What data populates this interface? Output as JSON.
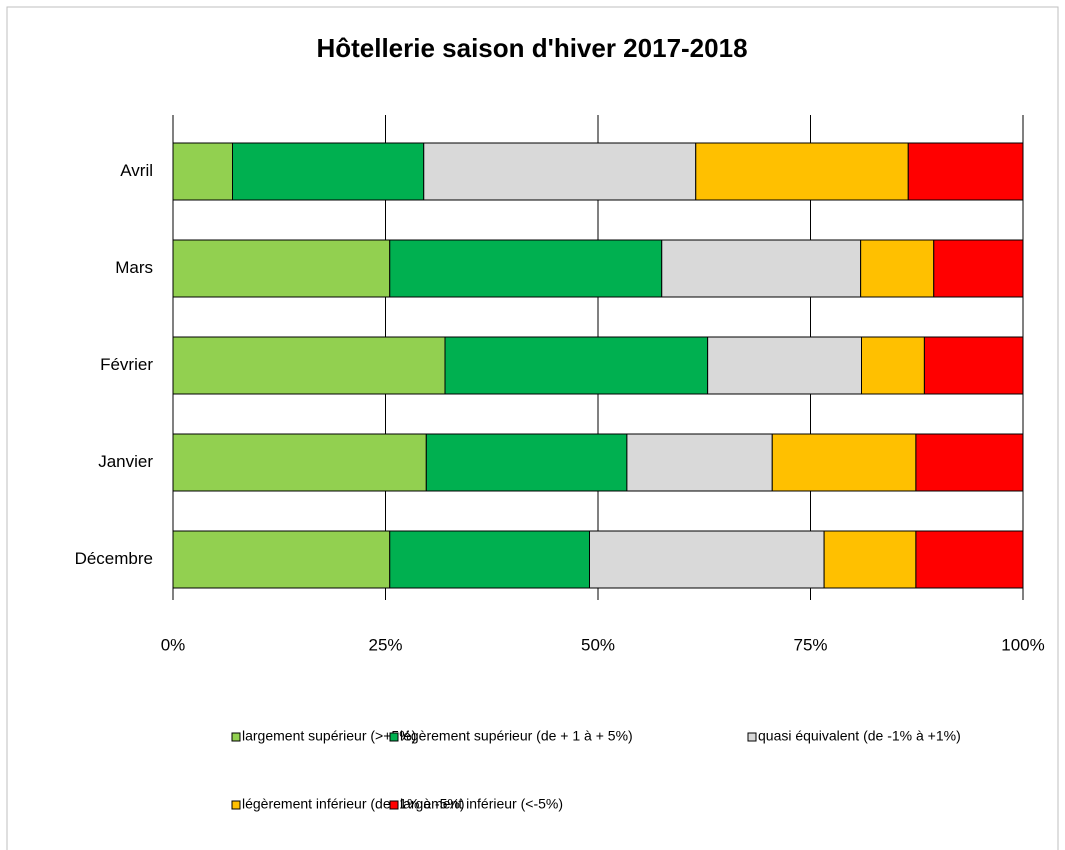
{
  "chart_data": {
    "type": "stacked-barh",
    "title": "Hôtellerie saison d'hiver 2017-2018",
    "categories": [
      "Avril",
      "Mars",
      "Février",
      "Janvier",
      "Décembre"
    ],
    "series": [
      {
        "name": "largement supérieur (>+5%)",
        "color": "#92d050",
        "values": [
          7,
          25.5,
          32,
          29.8,
          25.5
        ]
      },
      {
        "name": "légèrement supérieur (de + 1 à + 5%)",
        "color": "#00b050",
        "values": [
          22.5,
          32,
          30.9,
          23.6,
          23.5
        ]
      },
      {
        "name": "quasi équivalent (de  -1% à +1%)",
        "color": "#d9d9d9",
        "values": [
          32,
          23.4,
          18.1,
          17.1,
          27.6
        ]
      },
      {
        "name": "légèrement inférieur (de -1% à -5%)",
        "color": "#ffc000",
        "values": [
          25,
          8.6,
          7.4,
          16.9,
          10.8
        ]
      },
      {
        "name": "largement inférieur (<-5%)",
        "color": "#ff0000",
        "values": [
          13.5,
          10.5,
          11.6,
          12.6,
          12.6
        ]
      }
    ],
    "xlim": [
      0,
      100
    ],
    "xticks": [
      {
        "value": 0,
        "label": "0%"
      },
      {
        "value": 25,
        "label": "25%"
      },
      {
        "value": 50,
        "label": "50%"
      },
      {
        "value": 75,
        "label": "75%"
      },
      {
        "value": 100,
        "label": "100%"
      }
    ],
    "grid": true,
    "legend": "bottom"
  }
}
